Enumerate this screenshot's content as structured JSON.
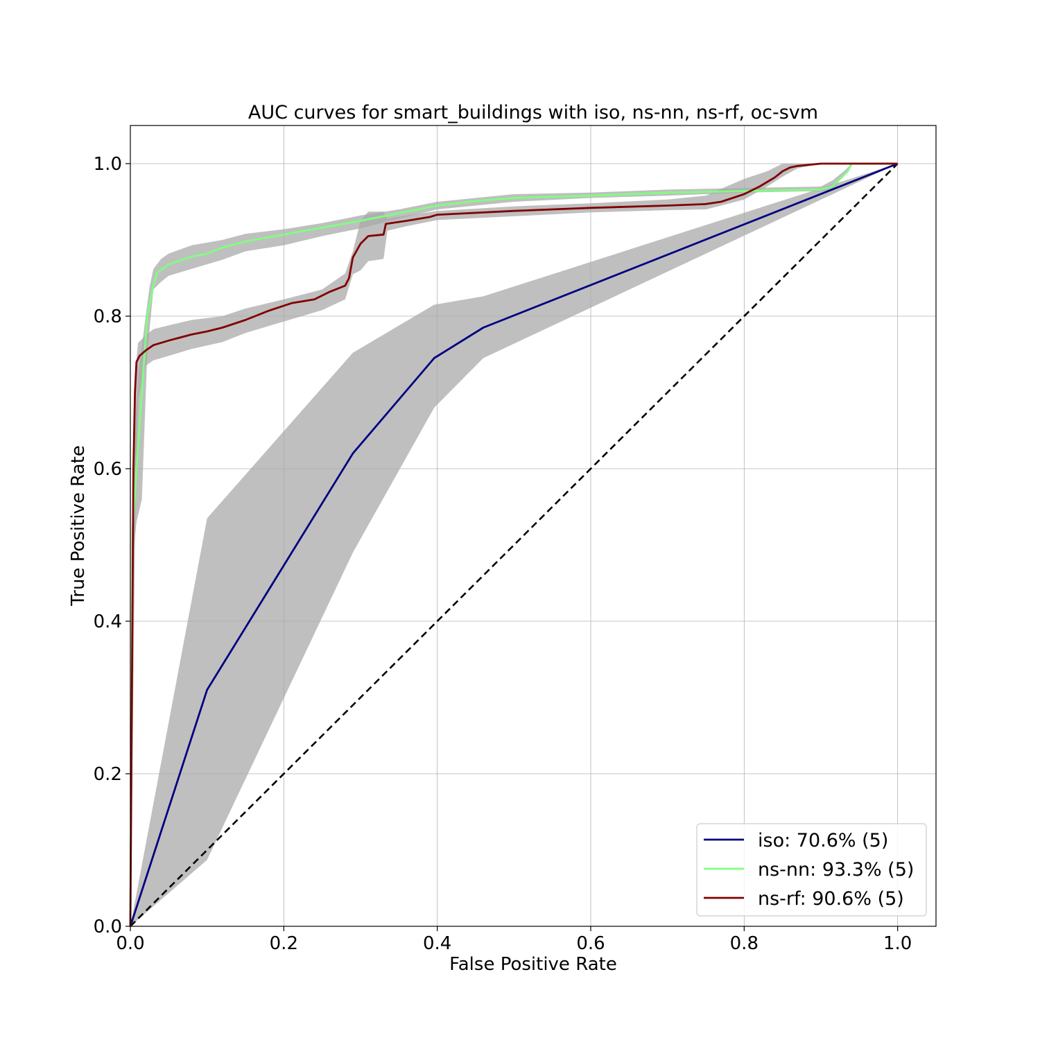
{
  "chart_data": {
    "type": "line",
    "title": "AUC curves for smart_buildings with iso, ns-nn, ns-rf, oc-svm",
    "xlabel": "False Positive Rate",
    "ylabel": "True Positive Rate",
    "xlim": [
      -0.0,
      1.05
    ],
    "ylim": [
      0.0,
      1.05
    ],
    "xticks": [
      "0.0",
      "0.2",
      "0.4",
      "0.6",
      "0.8",
      "1.0"
    ],
    "yticks": [
      "0.0",
      "0.2",
      "0.4",
      "0.6",
      "0.8",
      "1.0"
    ],
    "grid": true,
    "legend_position": "lower-right",
    "diagonal": {
      "x": [
        0,
        1
      ],
      "y": [
        0,
        1
      ],
      "color": "#000000",
      "style": "dashed"
    },
    "band_color": "#a9a9a9",
    "series": [
      {
        "name": "iso: 70.6% (5)",
        "color": "#000080",
        "x": [
          0.0,
          0.1,
          0.29,
          0.396,
          0.46,
          1.0
        ],
        "y": [
          0.0,
          0.31,
          0.62,
          0.745,
          0.785,
          1.0
        ],
        "band_upper_x": [
          0.0,
          0.1,
          0.29,
          0.396,
          0.46,
          1.0
        ],
        "band_upper_y": [
          0.0,
          0.535,
          0.752,
          0.815,
          0.826,
          1.0
        ],
        "band_lower_x": [
          0.0,
          0.1,
          0.29,
          0.396,
          0.46,
          1.0
        ],
        "band_lower_y": [
          0.0,
          0.087,
          0.49,
          0.68,
          0.745,
          1.0
        ]
      },
      {
        "name": "ns-nn: 93.3% (5)",
        "color": "#80ff80",
        "x": [
          0.0,
          0.003,
          0.008,
          0.015,
          0.022,
          0.03,
          0.035,
          0.05,
          0.08,
          0.1,
          0.12,
          0.15,
          0.2,
          0.25,
          0.3,
          0.35,
          0.4,
          0.45,
          0.5,
          0.6,
          0.7,
          0.8,
          0.9,
          0.915,
          0.925,
          0.935,
          0.94,
          1.0
        ],
        "y": [
          0.0,
          0.52,
          0.6,
          0.7,
          0.8,
          0.84,
          0.857,
          0.868,
          0.878,
          0.882,
          0.89,
          0.898,
          0.907,
          0.916,
          0.925,
          0.935,
          0.945,
          0.951,
          0.955,
          0.958,
          0.962,
          0.964,
          0.966,
          0.97,
          0.98,
          0.99,
          1.0,
          1.0
        ],
        "band_upper_x": [
          0.0,
          0.003,
          0.01,
          0.02,
          0.025,
          0.03,
          0.04,
          0.05,
          0.08,
          0.12,
          0.15,
          0.2,
          0.25,
          0.3,
          0.35,
          0.4,
          0.45,
          0.5,
          0.6,
          0.7,
          0.8,
          0.9,
          0.915,
          0.93,
          0.94,
          1.0
        ],
        "band_upper_y": [
          0.0,
          0.6,
          0.72,
          0.8,
          0.838,
          0.862,
          0.875,
          0.882,
          0.893,
          0.9,
          0.908,
          0.914,
          0.922,
          0.932,
          0.94,
          0.95,
          0.955,
          0.96,
          0.962,
          0.966,
          0.968,
          0.97,
          0.978,
          0.99,
          1.0,
          1.0
        ],
        "band_lower_x": [
          0.0,
          0.003,
          0.008,
          0.015,
          0.022,
          0.03,
          0.04,
          0.05,
          0.08,
          0.12,
          0.15,
          0.2,
          0.25,
          0.3,
          0.35,
          0.4,
          0.45,
          0.5,
          0.6,
          0.7,
          0.8,
          0.9,
          0.915,
          0.93,
          0.94,
          1.0
        ],
        "band_lower_y": [
          0.0,
          0.48,
          0.53,
          0.56,
          0.75,
          0.835,
          0.845,
          0.853,
          0.862,
          0.874,
          0.885,
          0.893,
          0.905,
          0.915,
          0.928,
          0.94,
          0.945,
          0.95,
          0.955,
          0.958,
          0.962,
          0.964,
          0.965,
          0.985,
          1.0,
          1.0
        ]
      },
      {
        "name": "ns-rf: 90.6% (5)",
        "color": "#800000",
        "x": [
          0.0,
          0.002,
          0.004,
          0.006,
          0.008,
          0.012,
          0.02,
          0.03,
          0.05,
          0.08,
          0.1,
          0.12,
          0.15,
          0.18,
          0.21,
          0.24,
          0.26,
          0.28,
          0.285,
          0.29,
          0.3,
          0.31,
          0.33,
          0.333,
          0.36,
          0.39,
          0.4,
          0.5,
          0.6,
          0.7,
          0.75,
          0.77,
          0.8,
          0.82,
          0.84,
          0.85,
          0.86,
          0.87,
          0.9,
          1.0
        ],
        "y": [
          0.0,
          0.3,
          0.6,
          0.7,
          0.74,
          0.748,
          0.755,
          0.762,
          0.768,
          0.776,
          0.78,
          0.785,
          0.795,
          0.807,
          0.817,
          0.822,
          0.832,
          0.84,
          0.85,
          0.877,
          0.895,
          0.905,
          0.907,
          0.921,
          0.925,
          0.93,
          0.933,
          0.938,
          0.942,
          0.945,
          0.947,
          0.95,
          0.96,
          0.97,
          0.982,
          0.99,
          0.995,
          0.997,
          1.0,
          1.0
        ],
        "band_upper_x": [
          0.0,
          0.002,
          0.006,
          0.01,
          0.02,
          0.03,
          0.05,
          0.08,
          0.12,
          0.15,
          0.2,
          0.25,
          0.28,
          0.29,
          0.3,
          0.31,
          0.33,
          0.335,
          0.36,
          0.4,
          0.5,
          0.6,
          0.7,
          0.75,
          0.77,
          0.8,
          0.83,
          0.85,
          0.87,
          0.9,
          1.0
        ],
        "band_upper_y": [
          0.0,
          0.45,
          0.72,
          0.765,
          0.775,
          0.783,
          0.788,
          0.795,
          0.8,
          0.81,
          0.822,
          0.835,
          0.856,
          0.885,
          0.925,
          0.937,
          0.937,
          0.928,
          0.932,
          0.938,
          0.944,
          0.948,
          0.953,
          0.958,
          0.967,
          0.98,
          0.99,
          1.0,
          1.0,
          1.0,
          1.0
        ],
        "band_lower_x": [
          0.0,
          0.002,
          0.006,
          0.01,
          0.02,
          0.03,
          0.05,
          0.08,
          0.12,
          0.15,
          0.2,
          0.25,
          0.28,
          0.29,
          0.3,
          0.31,
          0.33,
          0.335,
          0.36,
          0.4,
          0.5,
          0.6,
          0.7,
          0.75,
          0.77,
          0.8,
          0.83,
          0.85,
          0.87,
          0.9,
          1.0
        ],
        "band_lower_y": [
          0.0,
          0.15,
          0.5,
          0.69,
          0.735,
          0.742,
          0.748,
          0.757,
          0.766,
          0.778,
          0.793,
          0.808,
          0.822,
          0.855,
          0.86,
          0.872,
          0.875,
          0.912,
          0.918,
          0.926,
          0.931,
          0.936,
          0.939,
          0.94,
          0.945,
          0.953,
          0.97,
          0.983,
          0.994,
          1.0,
          1.0
        ]
      }
    ]
  }
}
